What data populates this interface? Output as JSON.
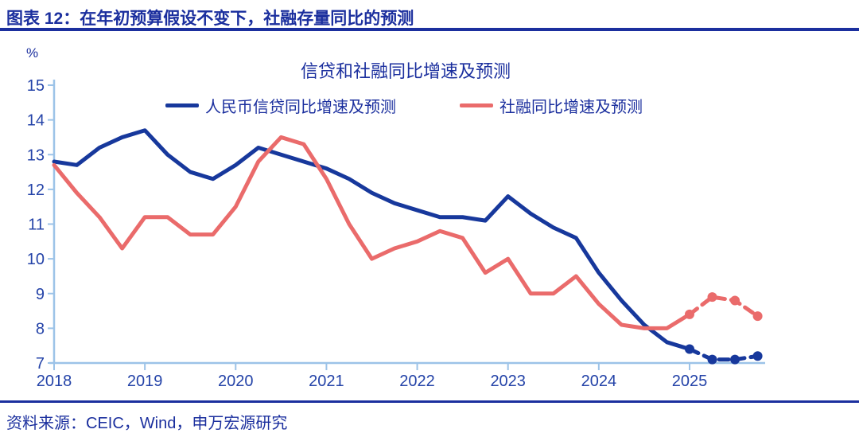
{
  "header": {
    "title": "图表 12：在年初预算假设不变下，社融存量同比的预测"
  },
  "footer": {
    "source": "资料来源：CEIC，Wind，申万宏源研究"
  },
  "colors": {
    "accent_blue": "#1b2f9e",
    "tick_label_blue": "#2443a8",
    "axis_light_blue": "#9cc3e8",
    "line_blue": "#17389c",
    "line_red": "#ea6b6b"
  },
  "chart_data": {
    "type": "line",
    "title": "信贷和社融同比增速及预测",
    "unit": "%",
    "xlabel": "",
    "ylabel": "%",
    "ylim": [
      7,
      15
    ],
    "grid": false,
    "legend_position": "top",
    "x_start_year": 2018,
    "x_step_years": 0.25,
    "x_tick_labels": [
      "2018",
      "2019",
      "2020",
      "2021",
      "2022",
      "2023",
      "2024",
      "2025"
    ],
    "y_tick_labels": [
      "15",
      "14",
      "13",
      "12",
      "11",
      "10",
      "9",
      "8",
      "7"
    ],
    "frequency": "quarterly",
    "forecast_start_index": 28,
    "forecast_style": "dashed-with-round-markers",
    "series": [
      {
        "name": "人民币信贷同比增速及预测",
        "color": "#17389c",
        "values": [
          12.8,
          12.7,
          13.2,
          13.5,
          13.7,
          13.0,
          12.5,
          12.3,
          12.7,
          13.2,
          13.0,
          12.8,
          12.6,
          12.3,
          11.9,
          11.6,
          11.4,
          11.2,
          11.2,
          11.1,
          11.8,
          11.3,
          10.9,
          10.6,
          9.6,
          8.8,
          8.1,
          7.6,
          7.4,
          7.1,
          7.1,
          7.2
        ]
      },
      {
        "name": "社融同比增速及预测",
        "color": "#ea6b6b",
        "values": [
          12.7,
          11.9,
          11.2,
          10.3,
          11.2,
          11.2,
          10.7,
          10.7,
          11.5,
          12.8,
          13.5,
          13.3,
          12.3,
          11.0,
          10.0,
          10.3,
          10.5,
          10.8,
          10.6,
          9.6,
          10.0,
          9.0,
          9.0,
          9.5,
          8.7,
          8.1,
          8.0,
          8.0,
          8.4,
          8.9,
          8.8,
          8.35
        ]
      }
    ]
  }
}
